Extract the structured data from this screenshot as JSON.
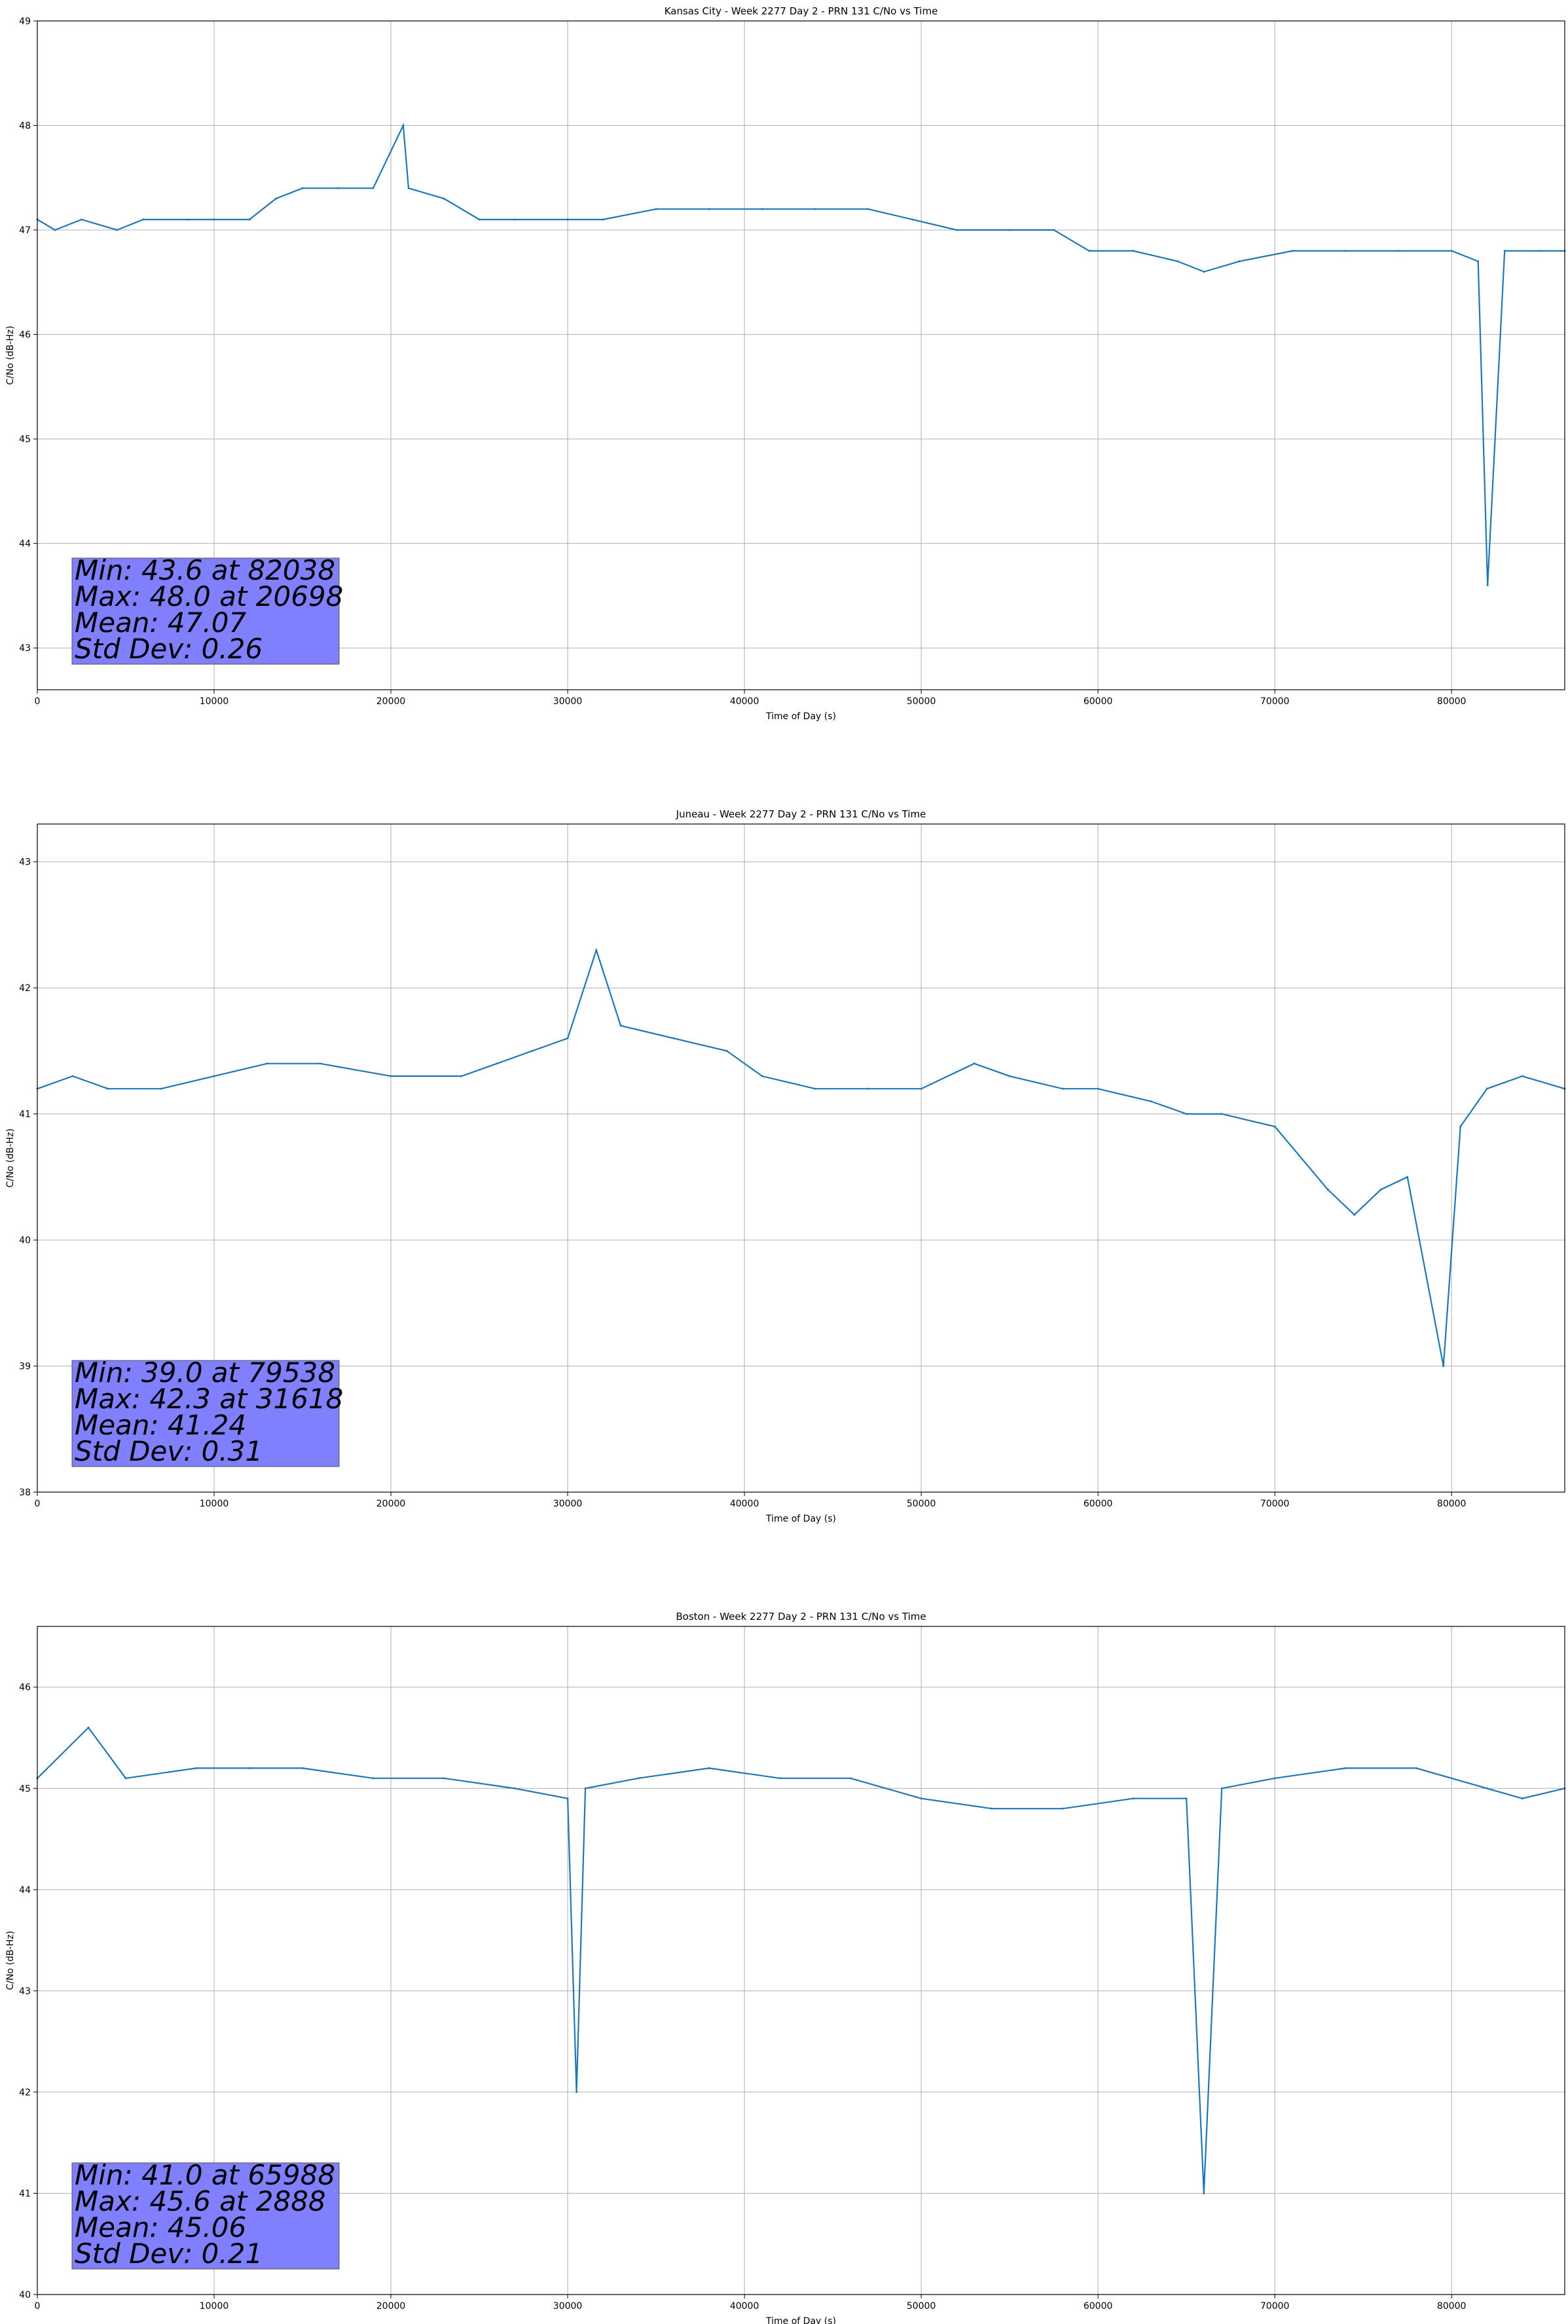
{
  "chart_data": [
    {
      "type": "line",
      "title": "Kansas City - Week 2277 Day 2 - PRN 131 C/No vs Time",
      "xlabel": "Time of Day (s)",
      "ylabel": "C/No (dB-Hz)",
      "xlim": [
        0,
        86400
      ],
      "ylim": [
        42.6,
        49.0
      ],
      "xticks": [
        0,
        10000,
        20000,
        30000,
        40000,
        50000,
        60000,
        70000,
        80000
      ],
      "yticks": [
        43,
        44,
        45,
        46,
        47,
        48,
        49
      ],
      "grid": true,
      "color": "#1f77b4",
      "stats_box": {
        "lines": [
          "Min: 43.6 at 82038",
          "Max: 48.0 at 20698",
          "Mean: 47.07",
          "Std Dev: 0.26"
        ],
        "color": "#8080ff"
      },
      "series": [
        {
          "x": [
            0,
            1000,
            2500,
            4500,
            6000,
            8500,
            10000,
            12000,
            13500,
            15000,
            17000,
            19000,
            20698,
            21000,
            23000,
            25000,
            27000,
            30000,
            32000,
            35000,
            38000,
            41000,
            44000,
            47000,
            49500,
            52000,
            55000,
            57500,
            59500,
            62000,
            64500,
            66000,
            68000,
            71000,
            74000,
            77000,
            80000,
            81500,
            82038,
            83000,
            85000,
            86400
          ],
          "y": [
            47.1,
            47.0,
            47.1,
            47.0,
            47.1,
            47.1,
            47.1,
            47.1,
            47.3,
            47.4,
            47.4,
            47.4,
            48.0,
            47.4,
            47.3,
            47.1,
            47.1,
            47.1,
            47.1,
            47.2,
            47.2,
            47.2,
            47.2,
            47.2,
            47.1,
            47.0,
            47.0,
            47.0,
            46.8,
            46.8,
            46.7,
            46.6,
            46.7,
            46.8,
            46.8,
            46.8,
            46.8,
            46.7,
            43.6,
            46.8,
            46.8,
            46.8
          ]
        }
      ]
    },
    {
      "type": "line",
      "title": "Juneau - Week 2277 Day 2 - PRN 131 C/No vs Time",
      "xlabel": "Time of Day (s)",
      "ylabel": "C/No (dB-Hz)",
      "xlim": [
        0,
        86400
      ],
      "ylim": [
        38.0,
        43.3
      ],
      "xticks": [
        0,
        10000,
        20000,
        30000,
        40000,
        50000,
        60000,
        70000,
        80000
      ],
      "yticks": [
        38,
        39,
        40,
        41,
        42,
        43
      ],
      "grid": true,
      "color": "#1f77b4",
      "stats_box": {
        "lines": [
          "Min: 39.0 at 79538",
          "Max: 42.3 at 31618",
          "Mean: 41.24",
          "Std Dev: 0.31"
        ],
        "color": "#8080ff"
      },
      "series": [
        {
          "x": [
            0,
            2000,
            4000,
            7000,
            10000,
            13000,
            16000,
            20000,
            24000,
            26000,
            28000,
            30000,
            31618,
            33000,
            36000,
            39000,
            41000,
            44000,
            47000,
            50000,
            53000,
            55000,
            58000,
            60000,
            63000,
            65000,
            67000,
            70000,
            73000,
            74500,
            76000,
            77500,
            79538,
            80500,
            82000,
            84000,
            86400
          ],
          "y": [
            41.2,
            41.3,
            41.2,
            41.2,
            41.3,
            41.4,
            41.4,
            41.3,
            41.3,
            41.4,
            41.5,
            41.6,
            42.3,
            41.7,
            41.6,
            41.5,
            41.3,
            41.2,
            41.2,
            41.2,
            41.4,
            41.3,
            41.2,
            41.2,
            41.1,
            41.0,
            41.0,
            40.9,
            40.4,
            40.2,
            40.4,
            40.5,
            39.0,
            40.9,
            41.2,
            41.3,
            41.2
          ]
        }
      ]
    },
    {
      "type": "line",
      "title": "Boston - Week 2277 Day 2 - PRN 131 C/No vs Time",
      "xlabel": "Time of Day (s)",
      "ylabel": "C/No (dB-Hz)",
      "xlim": [
        0,
        86400
      ],
      "ylim": [
        40.0,
        46.6
      ],
      "xticks": [
        0,
        10000,
        20000,
        30000,
        40000,
        50000,
        60000,
        70000,
        80000
      ],
      "yticks": [
        40,
        41,
        42,
        43,
        44,
        45,
        46
      ],
      "grid": true,
      "color": "#1f77b4",
      "stats_box": {
        "lines": [
          "Min: 41.0 at 65988",
          "Max: 45.6 at 2888",
          "Mean: 45.06",
          "Std Dev: 0.21"
        ],
        "color": "#8080ff"
      },
      "series": [
        {
          "x": [
            0,
            2888,
            5000,
            9000,
            12000,
            15000,
            19000,
            23000,
            27000,
            30000,
            30500,
            31000,
            34000,
            38000,
            42000,
            46000,
            50000,
            54000,
            58000,
            62000,
            65000,
            65988,
            67000,
            70000,
            74000,
            78000,
            82000,
            84000,
            86400
          ],
          "y": [
            45.1,
            45.6,
            45.1,
            45.2,
            45.2,
            45.2,
            45.1,
            45.1,
            45.0,
            44.9,
            42.0,
            45.0,
            45.1,
            45.2,
            45.1,
            45.1,
            44.9,
            44.8,
            44.8,
            44.9,
            44.9,
            41.0,
            45.0,
            45.1,
            45.2,
            45.2,
            45.0,
            44.9,
            45.0
          ]
        }
      ]
    }
  ]
}
